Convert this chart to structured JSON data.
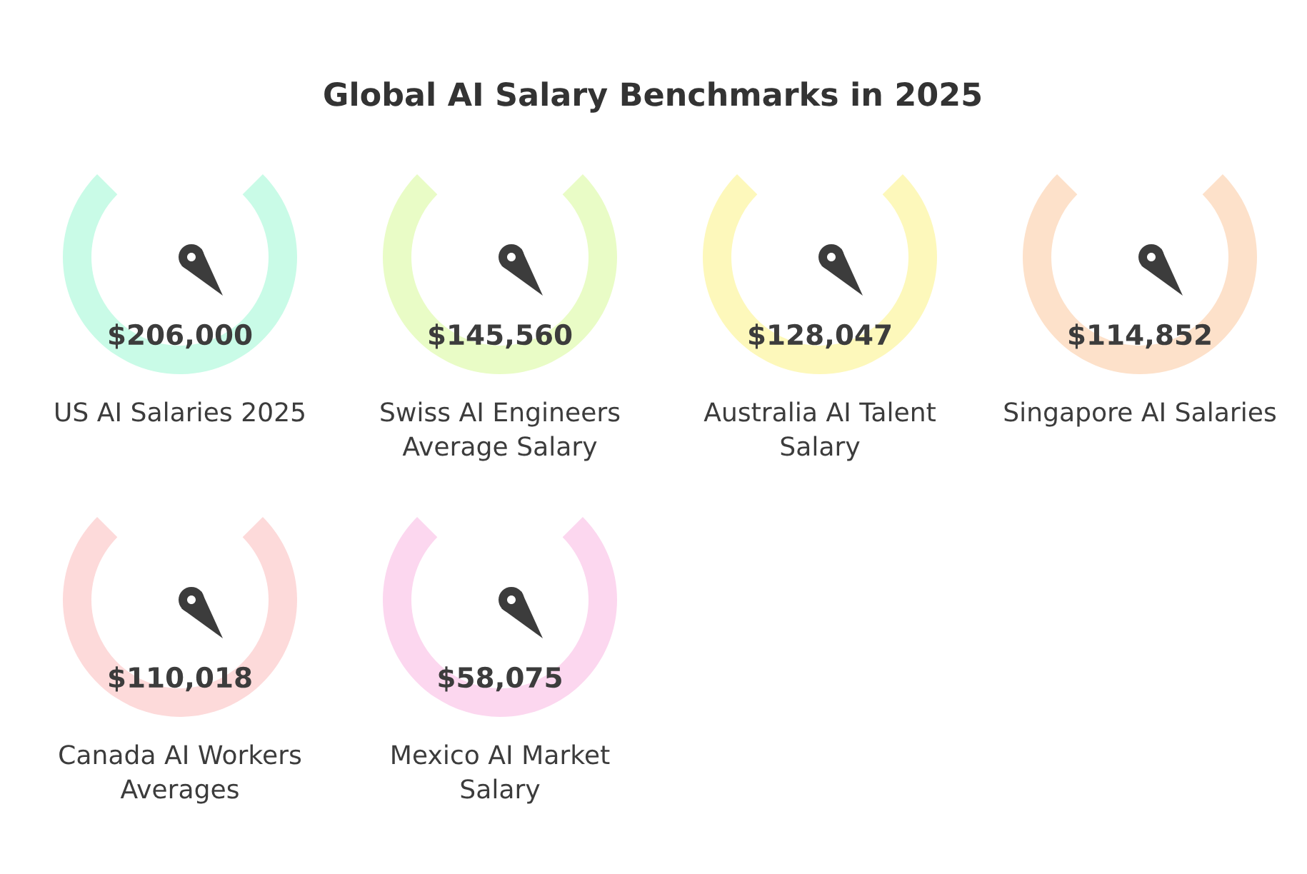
{
  "chart_data": {
    "type": "other",
    "title": "Global AI Salary Benchmarks in 2025",
    "categories": [
      "US AI Salaries 2025",
      "Swiss AI Engineers Average Salary",
      "Australia AI Talent Salary",
      "Singapore AI Salaries",
      "Canada AI Workers Averages",
      "Mexico AI Market Salary"
    ],
    "values": [
      206000,
      145560,
      128047,
      114852,
      110018,
      58075
    ],
    "value_labels": [
      "$206,000",
      "$145,560",
      "$128,047",
      "$114,852",
      "$110,018",
      "$58,075"
    ],
    "colors": [
      "#c9fbe7",
      "#e9fcc6",
      "#fdf8bb",
      "#fde1ca",
      "#fddada",
      "#fcd7ef"
    ]
  }
}
